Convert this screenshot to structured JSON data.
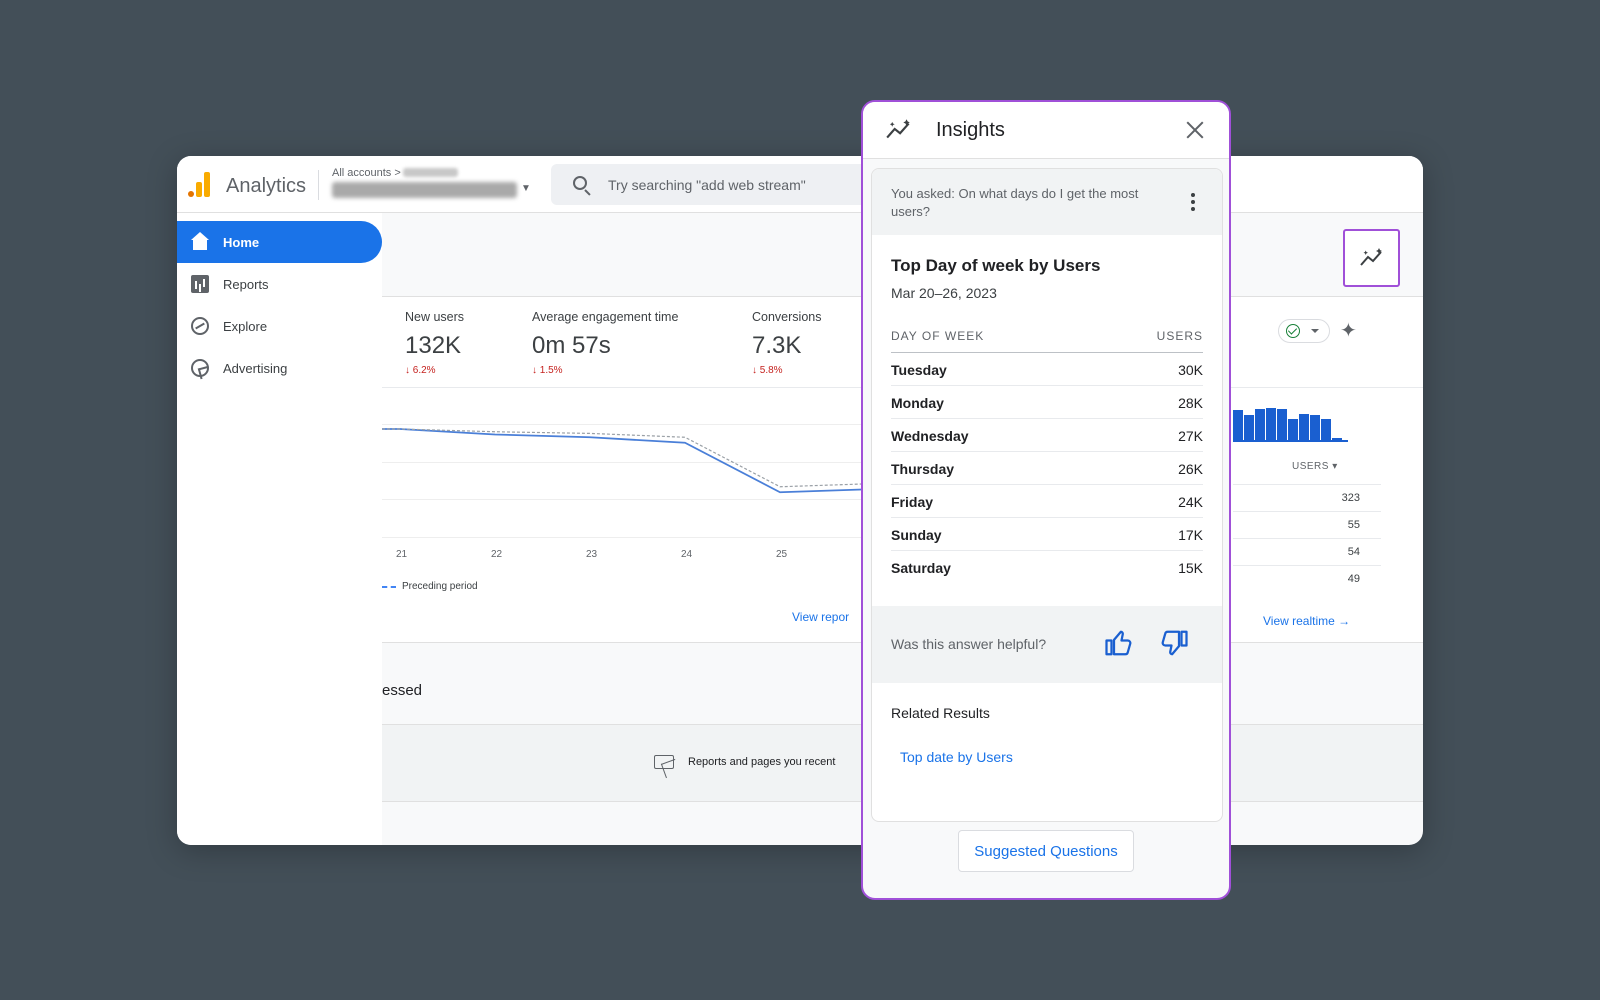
{
  "topbar": {
    "app_name": "Analytics",
    "accounts_label": "All accounts >",
    "search_placeholder": "Try searching \"add web stream\""
  },
  "sidebar": {
    "items": [
      {
        "label": "Home",
        "icon": "home-icon",
        "active": true
      },
      {
        "label": "Reports",
        "icon": "reports-icon"
      },
      {
        "label": "Explore",
        "icon": "explore-icon"
      },
      {
        "label": "Advertising",
        "icon": "advertising-icon"
      }
    ]
  },
  "metrics": [
    {
      "label": "New users",
      "value": "132K",
      "change": "↓ 6.2%"
    },
    {
      "label": "Average engagement time",
      "value": "0m 57s",
      "change": "↓ 1.5%"
    },
    {
      "label": "Conversions",
      "value": "7.3K",
      "change": "↓ 5.8%"
    }
  ],
  "chart_data": {
    "type": "line",
    "x": [
      "21",
      "22",
      "23",
      "24",
      "25"
    ],
    "series": [
      {
        "name": "",
        "values": [
          0.6,
          0.5,
          0.45,
          0.35,
          -0.55
        ]
      },
      {
        "name": "Preceding period",
        "values": [
          0.6,
          0.55,
          0.52,
          0.45,
          -0.45
        ]
      }
    ],
    "legend": [
      "Preceding period"
    ]
  },
  "links": {
    "view_reports": "View repor",
    "view_realtime": "View realtime →"
  },
  "recent": {
    "title": "essed",
    "text": "Reports and pages you recent"
  },
  "realtime": {
    "bars": [
      0.85,
      0.72,
      0.88,
      0.92,
      0.88,
      0.6,
      0.76,
      0.72,
      0.6,
      0.08
    ],
    "users_header": "USERS ▾",
    "values": [
      "323",
      "55",
      "54",
      "49"
    ]
  },
  "colors": {
    "accent": "#1a73e8",
    "highlight_border": "#a050d8",
    "negative": "#c5221f",
    "bar": "#1a5fd0"
  },
  "insights": {
    "title": "Insights",
    "asked": "You asked: On what days do I get the most users?",
    "result_title": "Top Day of week by Users",
    "date_range": "Mar 20–26, 2023",
    "col_day": "DAY OF WEEK",
    "col_users": "USERS",
    "rows": [
      {
        "day": "Tuesday",
        "users": "30K"
      },
      {
        "day": "Monday",
        "users": "28K"
      },
      {
        "day": "Wednesday",
        "users": "27K"
      },
      {
        "day": "Thursday",
        "users": "26K"
      },
      {
        "day": "Friday",
        "users": "24K"
      },
      {
        "day": "Sunday",
        "users": "17K"
      },
      {
        "day": "Saturday",
        "users": "15K"
      }
    ],
    "helpful_question": "Was this answer helpful?",
    "related_title": "Related Results",
    "related_link": "Top date by Users",
    "suggested_button": "Suggested Questions"
  }
}
